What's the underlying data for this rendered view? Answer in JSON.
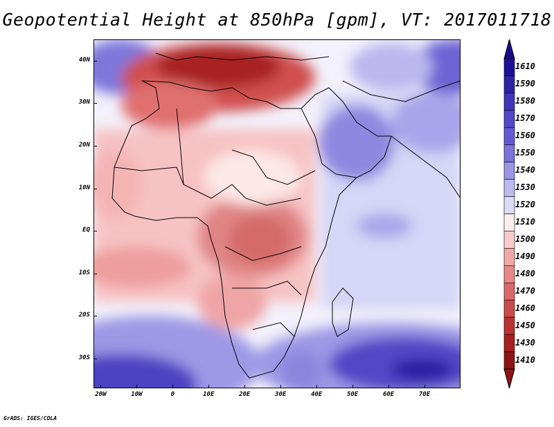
{
  "title": "Geopotential Height at 850hPa [gpm], VT: 2017011718",
  "credit": "GrADS: IGES/COLA",
  "map": {
    "projection": "lat-lon",
    "lon_range": [
      -22,
      80
    ],
    "lat_range": [
      -37,
      45
    ],
    "field": "Geopotential Height 850hPa",
    "units": "gpm"
  },
  "lat_labels": [
    {
      "lat": 40,
      "text": "40N"
    },
    {
      "lat": 30,
      "text": "30N"
    },
    {
      "lat": 20,
      "text": "20N"
    },
    {
      "lat": 10,
      "text": "10N"
    },
    {
      "lat": 0,
      "text": "EQ"
    },
    {
      "lat": -10,
      "text": "10S"
    },
    {
      "lat": -20,
      "text": "20S"
    },
    {
      "lat": -30,
      "text": "30S"
    }
  ],
  "lon_labels": [
    {
      "lon": -20,
      "text": "20W"
    },
    {
      "lon": -10,
      "text": "10W"
    },
    {
      "lon": 0,
      "text": "0"
    },
    {
      "lon": 10,
      "text": "10E"
    },
    {
      "lon": 20,
      "text": "20E"
    },
    {
      "lon": 30,
      "text": "30E"
    },
    {
      "lon": 40,
      "text": "40E"
    },
    {
      "lon": 50,
      "text": "50E"
    },
    {
      "lon": 60,
      "text": "60E"
    },
    {
      "lon": 70,
      "text": "70E"
    }
  ],
  "colorbar": {
    "labels": [
      "1610",
      "1590",
      "1580",
      "1570",
      "1560",
      "1550",
      "1540",
      "1530",
      "1520",
      "1510",
      "1500",
      "1490",
      "1480",
      "1470",
      "1460",
      "1450",
      "1430",
      "1410"
    ],
    "colors": [
      "#1e0f9a",
      "#2e22a8",
      "#3f35b8",
      "#5247c6",
      "#6459d2",
      "#7b72da",
      "#9b95e4",
      "#bdbaef",
      "#dcdcf8",
      "#fdeeee",
      "#f8cccc",
      "#f0a9a9",
      "#e68888",
      "#da6868",
      "#cc4a4a",
      "#bb3131",
      "#a81f1f",
      "#8f1515"
    ],
    "top_arrow_color": "#1a0c8a",
    "bottom_arrow_color": "#8f1515"
  }
}
